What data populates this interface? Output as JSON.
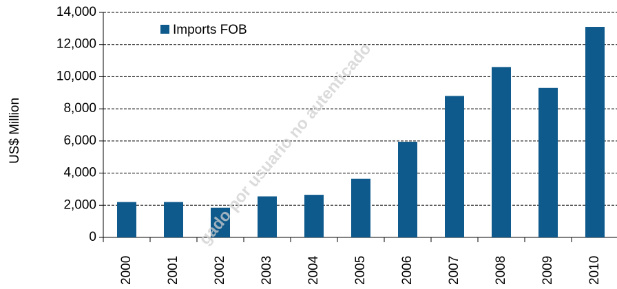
{
  "chart_data": {
    "type": "bar",
    "y_label": "US$ Million",
    "watermark": "gado por usuario no autenticado",
    "categories": [
      "2000",
      "2001",
      "2002",
      "2003",
      "2004",
      "2005",
      "2006",
      "2007",
      "2008",
      "2009",
      "2010"
    ],
    "series": [
      {
        "name": "Imports FOB",
        "color": "#0f5a8c",
        "values": [
          2200,
          2200,
          1850,
          2550,
          2650,
          3650,
          5950,
          8800,
          10600,
          9300,
          13100
        ]
      }
    ],
    "ylim": [
      0,
      14000
    ],
    "yticks": [
      0,
      {
        "value": 2000,
        "label": "2,000"
      },
      {
        "value": 4000,
        "label": "4,000"
      },
      {
        "value": 6000,
        "label": "6,000"
      },
      {
        "value": 8000,
        "label": "8,000"
      },
      {
        "value": 10000,
        "label": "10,000"
      },
      {
        "value": 12000,
        "label": "12,000"
      },
      {
        "value": 14000,
        "label": "14,000"
      }
    ],
    "grid": true,
    "legend": "top-left"
  }
}
